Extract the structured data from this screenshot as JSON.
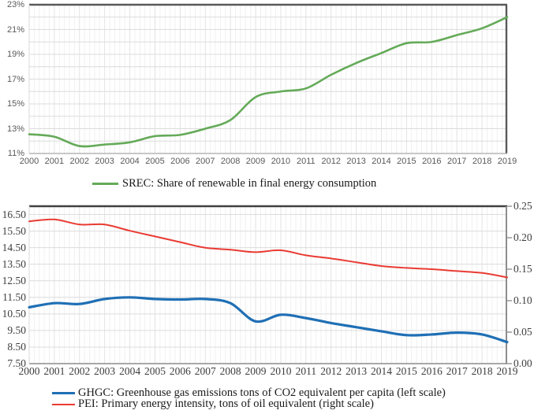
{
  "charts": [
    {
      "id": "srec",
      "type": "line",
      "x": [
        "2000",
        "2001",
        "2002",
        "2003",
        "2004",
        "2005",
        "2006",
        "2007",
        "2008",
        "2009",
        "2010",
        "2011",
        "2012",
        "2013",
        "2014",
        "2015",
        "2016",
        "2017",
        "2018",
        "2019"
      ],
      "y_axis": {
        "side": "left",
        "range": [
          11,
          23
        ],
        "tick_format": "percent",
        "ticks": [
          {
            "label": "23%",
            "value": 23
          },
          {
            "label": "21%",
            "value": 21
          },
          {
            "label": "19%",
            "value": 19
          },
          {
            "label": "17%",
            "value": 17
          },
          {
            "label": "15%",
            "value": 15
          },
          {
            "label": "13%",
            "value": 13
          },
          {
            "label": "11%",
            "value": 11
          }
        ],
        "grid_interval": 1
      },
      "grid": {
        "vertical_minor_per_year": 5,
        "horizontal": true
      },
      "series": [
        {
          "name": "SREC",
          "label": "SREC: Share of renewable in final energy consumption",
          "color": "#64aa58",
          "axis": "left",
          "smoothed": true,
          "values": [
            12.55,
            12.35,
            11.6,
            11.72,
            11.9,
            12.4,
            12.5,
            13.0,
            13.7,
            15.55,
            16.0,
            16.25,
            17.35,
            18.3,
            19.1,
            19.9,
            20.0,
            20.55,
            21.1,
            22.0
          ]
        }
      ]
    },
    {
      "id": "ghgc-pei",
      "type": "line",
      "x": [
        "2000",
        "2001",
        "2002",
        "2003",
        "2004",
        "2005",
        "2006",
        "2007",
        "2008",
        "2009",
        "2010",
        "2011",
        "2012",
        "2013",
        "2014",
        "2015",
        "2016",
        "2017",
        "2018",
        "2019"
      ],
      "left_axis": {
        "range": [
          7.5,
          17.0
        ],
        "ticks": [
          {
            "label": "16.50",
            "value": 16.5
          },
          {
            "label": "15.50",
            "value": 15.5
          },
          {
            "label": "14.50",
            "value": 14.5
          },
          {
            "label": "13.50",
            "value": 13.5
          },
          {
            "label": "12.50",
            "value": 12.5
          },
          {
            "label": "11.50",
            "value": 11.5
          },
          {
            "label": "10.50",
            "value": 10.5
          },
          {
            "label": "9.50",
            "value": 9.5
          },
          {
            "label": "8.50",
            "value": 8.5
          },
          {
            "label": "7.50",
            "value": 7.5
          }
        ],
        "grid_interval": 1
      },
      "right_axis": {
        "range": [
          0,
          0.25
        ],
        "ticks": [
          {
            "label": "0.25",
            "value": 0.25
          },
          {
            "label": "0.20",
            "value": 0.2
          },
          {
            "label": "0.15",
            "value": 0.15
          },
          {
            "label": "0.10",
            "value": 0.1
          },
          {
            "label": "0.05",
            "value": 0.05
          },
          {
            "label": "0.00",
            "value": 0.0
          }
        ]
      },
      "grid": {
        "vertical_minor_per_year": 5,
        "horizontal": true
      },
      "series": [
        {
          "name": "GHGC",
          "label": "GHGC: Greenhouse gas emissions tons of CO2 equivalent per capita (left scale)",
          "color": "#1f6fb5",
          "axis": "left",
          "smoothed": true,
          "values": [
            10.9,
            11.15,
            11.1,
            11.4,
            11.5,
            11.4,
            11.37,
            11.4,
            11.15,
            10.05,
            10.45,
            10.25,
            9.95,
            9.7,
            9.45,
            9.22,
            9.26,
            9.37,
            9.26,
            8.8
          ]
        },
        {
          "name": "PEI",
          "label": "PEI: Primary energy intensity, tons  of oil equivalent (right scale)",
          "color": "#e93b33",
          "axis": "right",
          "smoothed": true,
          "values": [
            0.226,
            0.229,
            0.221,
            0.221,
            0.211,
            0.202,
            0.193,
            0.184,
            0.181,
            0.177,
            0.18,
            0.172,
            0.167,
            0.161,
            0.155,
            0.152,
            0.15,
            0.147,
            0.144,
            0.137
          ]
        }
      ]
    }
  ]
}
